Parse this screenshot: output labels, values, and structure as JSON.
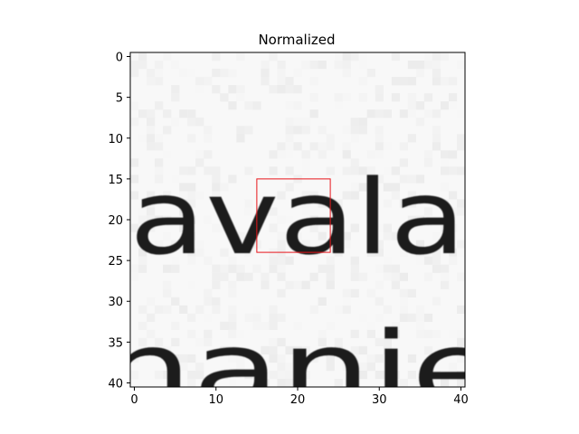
{
  "chart_data": {
    "type": "heatmap",
    "title": "Normalized",
    "xlabel": "",
    "ylabel": "",
    "colormap": "gray",
    "x_range": [
      0,
      40
    ],
    "y_range": [
      0,
      40
    ],
    "y_inverted": true,
    "xticks": [
      0,
      10,
      20,
      30,
      40
    ],
    "yticks": [
      0,
      5,
      10,
      15,
      20,
      25,
      30,
      35,
      40
    ],
    "grid": false,
    "content_text_lines": [
      "avala",
      "nanie"
    ],
    "highlight_box": {
      "x0": 15,
      "y0": 15,
      "x1": 24,
      "y1": 24,
      "color": "#e8151a"
    }
  }
}
